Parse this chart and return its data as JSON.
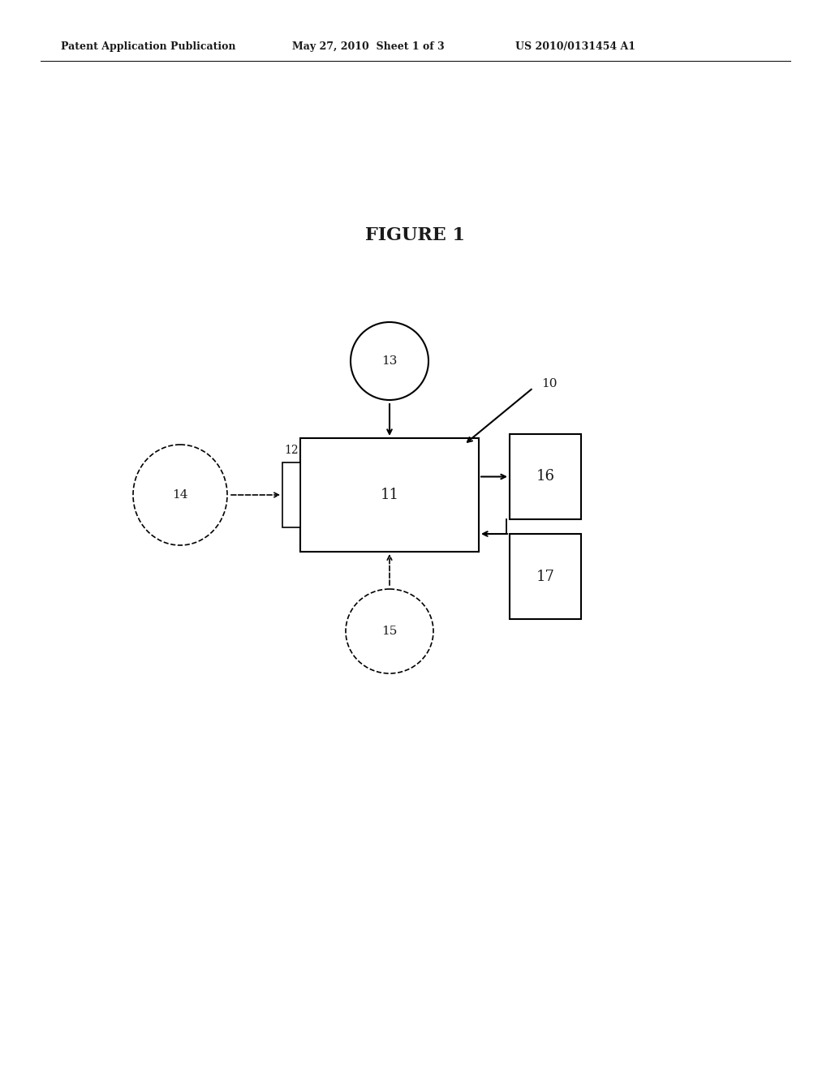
{
  "title": "FIGURE 1",
  "header_left": "Patent Application Publication",
  "header_mid": "May 27, 2010  Sheet 1 of 3",
  "header_right": "US 2010/0131454 A1",
  "bg_color": "#ffffff",
  "text_color": "#1a1a1a",
  "label_10": "10",
  "label_11": "11",
  "label_12": "12",
  "label_13": "13",
  "label_14": "14",
  "label_15": "15",
  "label_16": "16",
  "label_17": "17"
}
